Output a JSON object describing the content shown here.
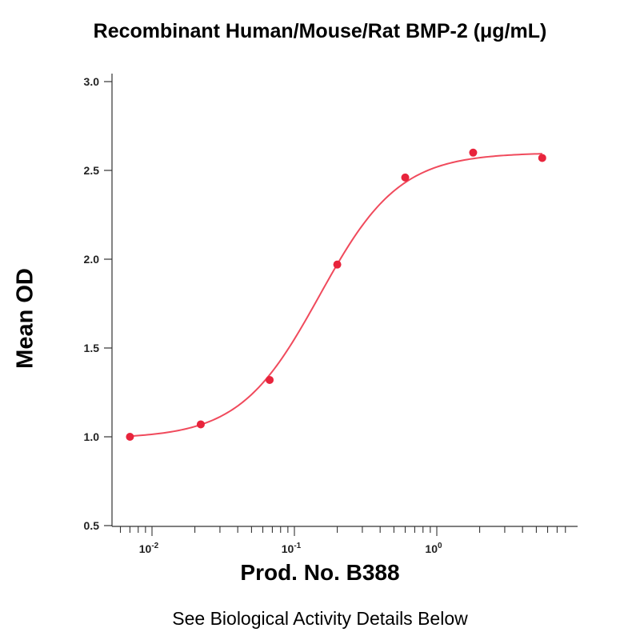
{
  "chart_data": {
    "type": "scatter",
    "title": "Recombinant Human/Mouse/Rat BMP-2 (μg/mL)",
    "xlabel": "Prod. No. B388",
    "ylabel": "Mean OD",
    "x_scale": "log",
    "xlim": [
      0.006,
      8
    ],
    "ylim": [
      0.5,
      3.0
    ],
    "y_ticks": [
      "0.5",
      "1.0",
      "1.5",
      "2.0",
      "2.5",
      "3.0"
    ],
    "x_ticks": [
      {
        "base": "10",
        "exp": "-2",
        "value": 0.01
      },
      {
        "base": "10",
        "exp": "-1",
        "value": 0.1
      },
      {
        "base": "10",
        "exp": "0",
        "value": 1
      }
    ],
    "grid": false,
    "series": [
      {
        "color": "#e8243c",
        "x": [
          0.007,
          0.022,
          0.067,
          0.2,
          0.6,
          1.8,
          5.5
        ],
        "y": [
          1.0,
          1.07,
          1.32,
          1.97,
          2.46,
          2.6,
          2.57
        ]
      }
    ],
    "fit_curve": {
      "model": "4PL",
      "bottom": 0.99,
      "top": 2.6,
      "ec50": 0.15,
      "hill": 1.55,
      "color": "#f04a5c"
    }
  },
  "footer": "See Biological Activity Details Below"
}
